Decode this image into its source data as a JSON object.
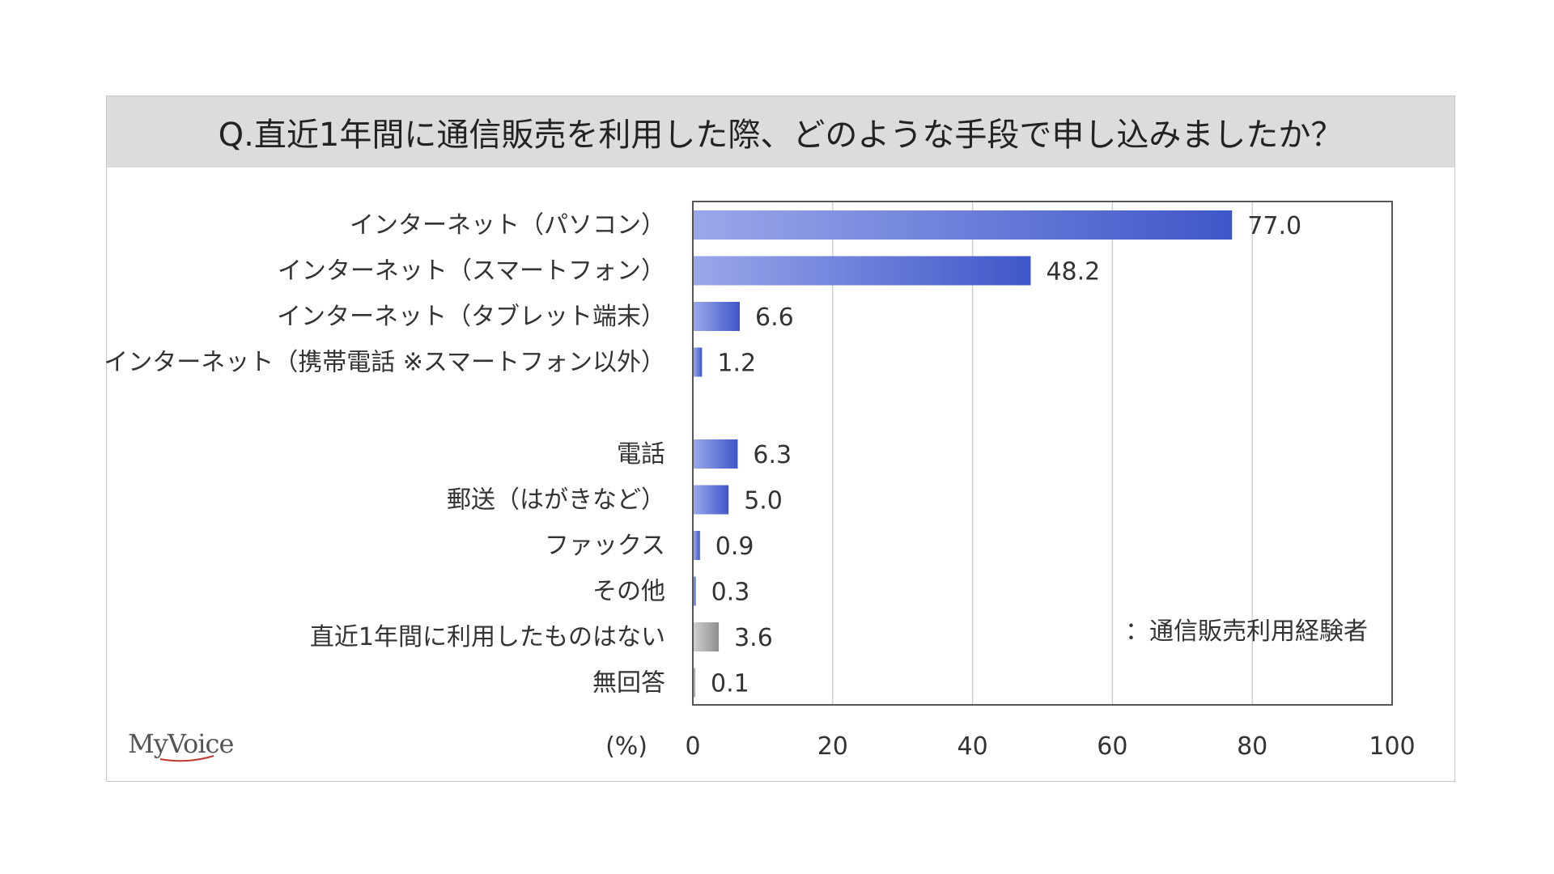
{
  "chart_data": {
    "type": "bar",
    "orientation": "horizontal",
    "title": "Q.直近1年間に通信販売を利用した際、どのような手段で申し込みましたか？",
    "unit_label": "(%)",
    "categories": [
      "インターネット（パソコン）",
      "インターネット（スマートフォン）",
      "インターネット（タブレット端末）",
      "インターネット（携帯電話 ※スマートフォン以外）",
      "電話",
      "郵送（はがきなど）",
      "ファックス",
      "その他",
      "直近1年間に利用したものはない",
      "無回答"
    ],
    "values": [
      77.0,
      48.2,
      6.6,
      1.2,
      6.3,
      5.0,
      0.9,
      0.3,
      3.6,
      0.1
    ],
    "value_labels": [
      "77.0",
      "48.2",
      "6.6",
      "1.2",
      "6.3",
      "5.0",
      "0.9",
      "0.3",
      "3.6",
      "0.1"
    ],
    "bar_colors": [
      "#4a63d4",
      "#4a63d4",
      "#4a63d4",
      "#4a63d4",
      "#4a63d4",
      "#4a63d4",
      "#4a63d4",
      "#4a63d4",
      "#9a9a9a",
      "#9a9a9a"
    ],
    "xlim": [
      0,
      100
    ],
    "xticks": [
      "0",
      "20",
      "40",
      "60",
      "80",
      "100"
    ],
    "grid": true,
    "legend_label": "：通信販売利用経験者",
    "legend_position": "bottom-right"
  },
  "logo_text": "MyVoice"
}
